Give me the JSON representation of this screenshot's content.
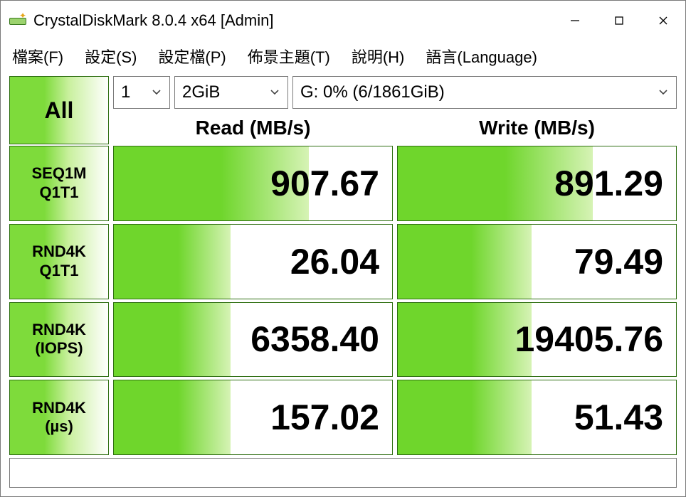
{
  "window": {
    "title": "CrystalDiskMark 8.0.4 x64 [Admin]"
  },
  "menu": {
    "file": "檔案(F)",
    "settings": "設定(S)",
    "profile": "設定檔(P)",
    "theme": "佈景主題(T)",
    "help": "說明(H)",
    "language": "語言(Language)"
  },
  "controls": {
    "all_label": "All",
    "runs": "1",
    "size": "2GiB",
    "drive": "G: 0% (6/1861GiB)"
  },
  "headers": {
    "read": "Read (MB/s)",
    "write": "Write (MB/s)"
  },
  "rows": [
    {
      "label_line1": "SEQ1M",
      "label_line2": "Q1T1",
      "read": "907.67",
      "write": "891.29",
      "read_fill_pct": 70,
      "write_fill_pct": 70
    },
    {
      "label_line1": "RND4K",
      "label_line2": "Q1T1",
      "read": "26.04",
      "write": "79.49",
      "read_fill_pct": 42,
      "write_fill_pct": 48
    },
    {
      "label_line1": "RND4K",
      "label_line2": "(IOPS)",
      "read": "6358.40",
      "write": "19405.76",
      "read_fill_pct": 42,
      "write_fill_pct": 48
    },
    {
      "label_line1": "RND4K",
      "label_line2": "(µs)",
      "read": "157.02",
      "write": "51.43",
      "read_fill_pct": 42,
      "write_fill_pct": 48
    }
  ],
  "colors": {
    "green_dark": "#6fd62c",
    "green_light": "#d6f3b5",
    "border": "#2f6f12",
    "window_border": "#7a7a7a",
    "bg": "#ffffff",
    "text": "#000000"
  }
}
